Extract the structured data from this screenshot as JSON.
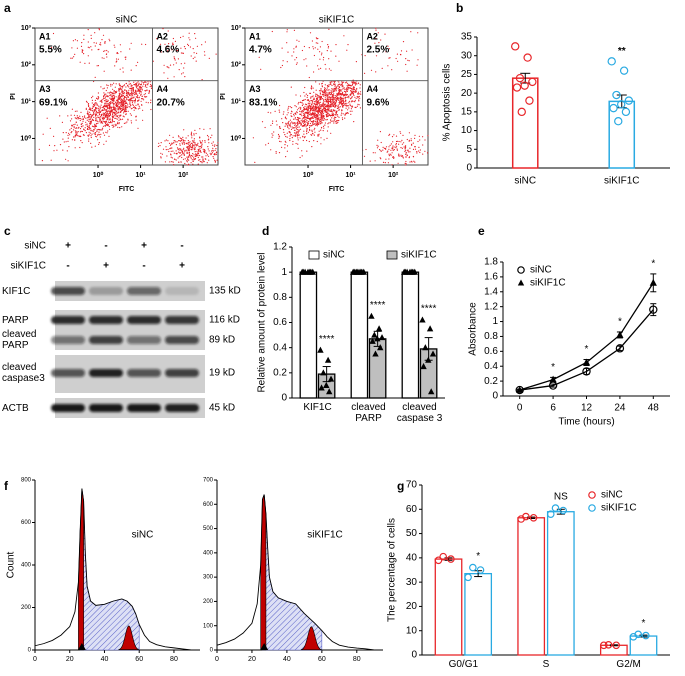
{
  "blot": {
    "panel": "c",
    "conditions": [
      {
        "name": "siNC",
        "signs": [
          "+",
          "-",
          "+",
          "-"
        ]
      },
      {
        "name": "siKIF1C",
        "signs": [
          "-",
          "+",
          "-",
          "+"
        ]
      }
    ],
    "rows": [
      {
        "label": "KIF1C",
        "size": "135 kD"
      },
      {
        "label": "PARP",
        "size": "116 kD"
      },
      {
        "label": "cleaved PARP",
        "size": "89 kD"
      },
      {
        "label": "cleaved caspase3",
        "size": "19 kD"
      },
      {
        "label": "ACTB",
        "size": "45 kD"
      }
    ]
  },
  "chart_data": [
    {
      "type": "flow",
      "panel": "a",
      "title": "siNC",
      "xlabel": "FITC",
      "ylabel": "PI",
      "log": true,
      "color": "#e41e26",
      "xlim": [
        0.033,
        660
      ],
      "ylim": [
        0.19,
        1000
      ],
      "xticks": [
        {
          "value": 1,
          "label": "10⁰"
        },
        {
          "value": 10,
          "label": "10¹"
        },
        {
          "value": 100,
          "label": "10²"
        }
      ],
      "yticks": [
        {
          "value": 1,
          "label": "10⁰"
        },
        {
          "value": 10,
          "label": "10¹"
        },
        {
          "value": 100,
          "label": "10²"
        },
        {
          "value": 1000,
          "label": "10³"
        }
      ],
      "x_gate": 19,
      "y_gate": 37,
      "categories": [
        "A1",
        "A2",
        "A3",
        "A4"
      ],
      "values": [
        5.5,
        4.6,
        69.1,
        20.7
      ],
      "value_labels": [
        "5.5%",
        "4.6%",
        "69.1%",
        "20.7%"
      ]
    },
    {
      "type": "flow",
      "title": "siKIF1C",
      "xlabel": "FITC",
      "ylabel": "PI",
      "log": true,
      "color": "#e41e26",
      "xlim": [
        0.033,
        660
      ],
      "ylim": [
        0.19,
        1000
      ],
      "xticks": [
        {
          "value": 1,
          "label": "10⁰"
        },
        {
          "value": 10,
          "label": "10¹"
        },
        {
          "value": 100,
          "label": "10²"
        }
      ],
      "yticks": [
        {
          "value": 1,
          "label": "10⁰"
        },
        {
          "value": 10,
          "label": "10¹"
        },
        {
          "value": 100,
          "label": "10²"
        },
        {
          "value": 1000,
          "label": "10³"
        }
      ],
      "x_gate": 19,
      "y_gate": 37,
      "categories": [
        "A1",
        "A2",
        "A3",
        "A4"
      ],
      "values": [
        4.7,
        2.5,
        83.1,
        9.6
      ],
      "value_labels": [
        "4.7%",
        "2.5%",
        "83.1%",
        "9.6%"
      ]
    },
    {
      "type": "bar",
      "panel": "b",
      "ylabel": "% Apoptosis cells",
      "categories": [
        "siNC",
        "siKIF1C"
      ],
      "values": [
        24,
        17.8
      ],
      "errors": [
        1.3,
        1.7
      ],
      "colors": [
        "#e8262a",
        "#29aae2"
      ],
      "points": [
        [
          32.5,
          29.5,
          24,
          23,
          22,
          21.5,
          18,
          15
        ],
        [
          28.5,
          26,
          19.5,
          18,
          17,
          16,
          15,
          12.5
        ]
      ],
      "annotations": [
        null,
        "**"
      ],
      "ylim": [
        0,
        35
      ],
      "yticks": [
        0,
        5,
        10,
        15,
        20,
        25,
        30,
        35
      ]
    },
    {
      "type": "grouped-bar",
      "panel": "d",
      "ylabel": "Relative amount of protein level",
      "categories": [
        "KIF1C",
        "cleaved PARP",
        "cleaved caspase 3"
      ],
      "series": [
        {
          "name": "siNC",
          "color": "#ffffff",
          "marker": "triangle",
          "values": [
            1,
            1,
            1
          ],
          "points": [
            [
              1,
              1,
              1,
              1,
              1,
              1,
              1
            ],
            [
              1,
              1,
              1,
              1,
              1,
              1,
              1,
              1
            ],
            [
              1,
              1,
              1,
              1,
              1,
              1,
              1
            ]
          ]
        },
        {
          "name": "siKIF1C",
          "color": "#bfbfbf",
          "marker": "triangle",
          "values": [
            0.19,
            0.47,
            0.39
          ],
          "errors": [
            0.06,
            0.06,
            0.09
          ],
          "points": [
            [
              0.38,
              0.3,
              0.2,
              0.15,
              0.1,
              0.08,
              0.05
            ],
            [
              0.65,
              0.55,
              0.5,
              0.48,
              0.47,
              0.45,
              0.4,
              0.35
            ],
            [
              0.62,
              0.55,
              0.4,
              0.35,
              0.3,
              0.25,
              0.05
            ]
          ]
        }
      ],
      "outline": false,
      "legend": "top",
      "annotations": [
        "****",
        "****",
        "****"
      ],
      "ylim": [
        0,
        1.2
      ],
      "yticks": [
        0,
        0.2,
        0.4,
        0.6,
        0.8,
        1,
        1.2
      ]
    },
    {
      "type": "line",
      "panel": "e",
      "xlabel": "Time (hours)",
      "ylabel": "Absorbance",
      "categories": [
        "0",
        "6",
        "12",
        "24",
        "48"
      ],
      "series": [
        {
          "name": "siNC",
          "color": "#000000",
          "marker": "circle",
          "values": [
            0.08,
            0.14,
            0.33,
            0.64,
            1.16
          ],
          "errors": [
            0.01,
            0.02,
            0.04,
            0.03,
            0.08
          ]
        },
        {
          "name": "siKIF1C",
          "color": "#000000",
          "marker": "triangle",
          "values": [
            0.08,
            0.22,
            0.45,
            0.82,
            1.52
          ],
          "errors": [
            0.01,
            0.03,
            0.04,
            0.04,
            0.12
          ]
        }
      ],
      "legend": "upper left",
      "annotations": [
        null,
        "*",
        "*",
        "*",
        "*"
      ],
      "ylim": [
        0,
        1.8
      ],
      "yticks": [
        0,
        0.2,
        0.4,
        0.6,
        0.8,
        1,
        1.2,
        1.4,
        1.6,
        1.8
      ]
    },
    {
      "type": "area",
      "panel": "f",
      "title": "siNC",
      "ylabel": "Count",
      "color": "#000000",
      "x": [
        0,
        5,
        10,
        15,
        20,
        23,
        25,
        26,
        27,
        28,
        29,
        30,
        32,
        35,
        40,
        45,
        50,
        53,
        56,
        58,
        60,
        63,
        66,
        70,
        75,
        80,
        85,
        90
      ],
      "values": [
        20,
        30,
        45,
        70,
        110,
        180,
        320,
        560,
        760,
        700,
        450,
        300,
        230,
        210,
        215,
        230,
        240,
        230,
        205,
        170,
        120,
        70,
        40,
        25,
        15,
        10,
        5,
        0
      ],
      "xlim": [
        0,
        95
      ],
      "xticks": [
        0,
        20,
        40,
        60,
        80
      ],
      "ylim": [
        0,
        800
      ],
      "yticks": [
        0,
        200,
        400,
        600,
        800
      ]
    },
    {
      "type": "area",
      "title": "siKIF1C",
      "color": "#000000",
      "x": [
        0,
        5,
        10,
        15,
        20,
        23,
        25,
        26,
        27,
        28,
        29,
        30,
        32,
        35,
        40,
        45,
        50,
        53,
        56,
        58,
        60,
        63,
        66,
        70,
        75,
        80,
        85,
        90
      ],
      "values": [
        20,
        30,
        45,
        70,
        110,
        190,
        350,
        620,
        640,
        560,
        420,
        300,
        240,
        215,
        200,
        190,
        150,
        130,
        110,
        95,
        80,
        55,
        35,
        20,
        12,
        8,
        5,
        0
      ],
      "xlim": [
        0,
        95
      ],
      "xticks": [
        0,
        20,
        40,
        60,
        80
      ],
      "ylim": [
        0,
        700
      ],
      "yticks": [
        0,
        100,
        200,
        300,
        400,
        500,
        600,
        700
      ]
    },
    {
      "type": "grouped-bar",
      "panel": "g",
      "ylabel": "The percentage of cells",
      "categories": [
        "G0/G1",
        "S",
        "G2/M"
      ],
      "series": [
        {
          "name": "siNC",
          "color": "#e8262a",
          "marker": "circle",
          "values": [
            39.5,
            56.5,
            4
          ],
          "errors": [
            0.5,
            0.3,
            0.2
          ],
          "points": [
            [
              39,
              39.5,
              40.5
            ],
            [
              56,
              56.5,
              57
            ],
            [
              4,
              4,
              4.2
            ]
          ]
        },
        {
          "name": "siKIF1C",
          "color": "#29aae2",
          "marker": "circle",
          "values": [
            33.5,
            59,
            7.8
          ],
          "errors": [
            1.2,
            1,
            0.4
          ],
          "points": [
            [
              32,
              35,
              36
            ],
            [
              58,
              59.5,
              60.5
            ],
            [
              7.5,
              8,
              8.5
            ]
          ]
        }
      ],
      "outline": true,
      "legend": "upper right",
      "annotations": [
        "*",
        "NS",
        "*"
      ],
      "ylim": [
        0,
        70
      ],
      "yticks": [
        0,
        10,
        20,
        30,
        40,
        50,
        60,
        70
      ]
    }
  ]
}
